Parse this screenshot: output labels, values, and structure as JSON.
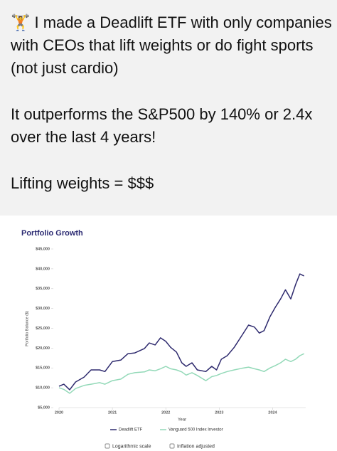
{
  "post": {
    "paragraphs": [
      "🏋️ I made a Deadlift ETF with only companies with CEOs that lift weights or do fight sports (not just cardio)",
      "It outperforms the S&P500 by 140% or 2.4x over the last 4 years!",
      "Lifting weights = $$$"
    ]
  },
  "chart_data": {
    "type": "line",
    "title": "Portfolio Growth",
    "xlabel": "Year",
    "ylabel": "Portfolio Balance ($)",
    "x": [
      2020,
      2020.09,
      2020.2,
      2020.31,
      2020.47,
      2020.6,
      2020.76,
      2020.86,
      2021,
      2021.16,
      2021.29,
      2021.42,
      2021.6,
      2021.69,
      2021.8,
      2021.9,
      2022,
      2022.09,
      2022.2,
      2022.3,
      2022.38,
      2022.49,
      2022.59,
      2022.75,
      2022.86,
      2022.95,
      2023.04,
      2023.15,
      2023.28,
      2023.42,
      2023.55,
      2023.66,
      2023.75,
      2023.84,
      2023.95,
      2024.05,
      2024.15,
      2024.24,
      2024.34,
      2024.43,
      2024.51,
      2024.59
    ],
    "series": [
      {
        "name": "Deadlift ETF",
        "color": "#2e2a6e",
        "values": [
          10400,
          10900,
          9500,
          11450,
          12700,
          14500,
          14500,
          14100,
          16600,
          17000,
          18600,
          18800,
          19900,
          21300,
          20800,
          22600,
          21700,
          20200,
          19000,
          16300,
          15400,
          16300,
          14500,
          14100,
          15400,
          14500,
          17200,
          18100,
          20200,
          23100,
          25800,
          25300,
          23800,
          24400,
          27900,
          30300,
          32400,
          34700,
          32400,
          36000,
          38700,
          38200
        ]
      },
      {
        "name": "Vanguard 500 Index Investor",
        "color": "#93d9b8",
        "values": [
          10000,
          9600,
          8600,
          9800,
          10600,
          10900,
          11300,
          10900,
          11800,
          12200,
          13400,
          13800,
          14000,
          14500,
          14300,
          14800,
          15400,
          14800,
          14500,
          14000,
          13200,
          13800,
          13100,
          11800,
          12800,
          13100,
          13600,
          14100,
          14500,
          14900,
          15200,
          14800,
          14500,
          14100,
          15000,
          15600,
          16300,
          17200,
          16600,
          17200,
          18100,
          18600
        ]
      }
    ],
    "xlim": [
      2020,
      2024.62
    ],
    "xticks": [
      2020,
      2021,
      2022,
      2023,
      2024
    ],
    "ylim": [
      5000,
      45000
    ],
    "yticks": [
      {
        "value": 5000,
        "label": "$5,000"
      },
      {
        "value": 10000,
        "label": "$10,000"
      },
      {
        "value": 15000,
        "label": "$15,000"
      },
      {
        "value": 20000,
        "label": "$20,000"
      },
      {
        "value": 25000,
        "label": "$25,000"
      },
      {
        "value": 30000,
        "label": "$30,000"
      },
      {
        "value": 35000,
        "label": "$35,000"
      },
      {
        "value": 40000,
        "label": "$40,000"
      },
      {
        "value": 45000,
        "label": "$45,000"
      }
    ],
    "log_scale": false,
    "grid": false,
    "legend": "bottom",
    "controls": [
      "Logarithmic scale",
      "Inflation adjusted"
    ]
  }
}
